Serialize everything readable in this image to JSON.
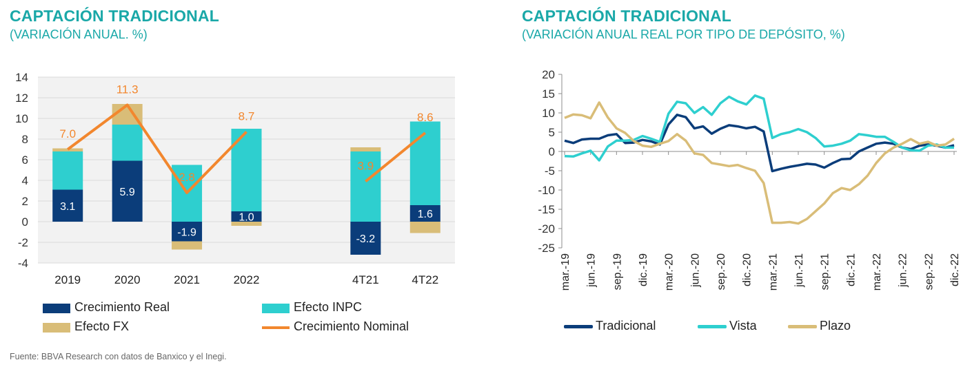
{
  "source": "Fuente: BBVA Research con datos de Banxico y el Inegi.",
  "chart_data": [
    {
      "type": "bar",
      "title": "CAPTACIÓN TRADICIONAL",
      "subtitle": "(VARIACIÓN ANUAL. %)",
      "categories": [
        "2019",
        "2020",
        "2021",
        "2022",
        "",
        "4T21",
        "4T22"
      ],
      "ylim": [
        -4,
        14
      ],
      "yticks": [
        -4,
        -2,
        0,
        2,
        4,
        6,
        8,
        10,
        12,
        14
      ],
      "grid": true,
      "legend_position": "bottom",
      "stacked": true,
      "series": [
        {
          "name": "Crecimiento Real",
          "kind": "bar",
          "color": "#0b3d7a",
          "values": [
            3.1,
            5.9,
            -1.9,
            1.0,
            null,
            -3.2,
            1.6
          ],
          "labels": [
            "3.1",
            "5.9",
            "-1.9",
            "1.0",
            "",
            "-3.2",
            "1.6"
          ]
        },
        {
          "name": "Efecto INPC",
          "kind": "bar",
          "color": "#2ecfcf",
          "values": [
            3.7,
            3.5,
            5.5,
            8.0,
            null,
            6.8,
            8.1
          ]
        },
        {
          "name": "Efecto FX",
          "kind": "bar",
          "color": "#d9bd78",
          "values": [
            0.3,
            2.0,
            -0.8,
            -0.4,
            null,
            0.4,
            -1.1
          ]
        },
        {
          "name": "Crecimiento Nominal",
          "kind": "line",
          "color": "#f2872e",
          "values": [
            7.0,
            11.3,
            2.8,
            8.7,
            null,
            3.9,
            8.6
          ],
          "labels": [
            "7.0",
            "11.3",
            "2.8",
            "8.7",
            "",
            "3.9",
            "8.6"
          ]
        }
      ]
    },
    {
      "type": "line",
      "title": "CAPTACIÓN TRADICIONAL",
      "subtitle": "(VARIACIÓN ANUAL REAL POR TIPO DE DEPÓSITO, %)",
      "x": [
        "mar.-19",
        "abr.-19",
        "may.-19",
        "jun.-19",
        "jul.-19",
        "ago.-19",
        "sep.-19",
        "oct.-19",
        "nov.-19",
        "dic.-19",
        "ene.-20",
        "feb.-20",
        "mar.-20",
        "abr.-20",
        "may.-20",
        "jun.-20",
        "jul.-20",
        "ago.-20",
        "sep.-20",
        "oct.-20",
        "nov.-20",
        "dic.-20",
        "ene.-21",
        "feb.-21",
        "mar.-21",
        "abr.-21",
        "may.-21",
        "jun.-21",
        "jul.-21",
        "ago.-21",
        "sep.-21",
        "oct.-21",
        "nov.-21",
        "dic.-21",
        "ene.-22",
        "feb.-22",
        "mar.-22",
        "abr.-22",
        "may.-22",
        "jun.-22",
        "jul.-22",
        "ago.-22",
        "sep.-22",
        "oct.-22",
        "nov.-22",
        "dic.-22"
      ],
      "xticklabels": [
        "mar.-19",
        "jun.-19",
        "sep.-19",
        "dic.-19",
        "mar.-20",
        "jun.-20",
        "sep.-20",
        "dic.-20",
        "mar.-21",
        "jun.-21",
        "sep.-21",
        "dic.-21",
        "mar.-22",
        "jun.-22",
        "sep.-22",
        "dic.-22"
      ],
      "ylim": [
        -25,
        20
      ],
      "yticks": [
        -25,
        -20,
        -15,
        -10,
        -5,
        0,
        5,
        10,
        15,
        20
      ],
      "grid": false,
      "legend_position": "bottom",
      "series": [
        {
          "name": "Tradicional",
          "color": "#0b3d7a",
          "values": [
            2.8,
            2.2,
            3.1,
            3.3,
            3.3,
            4.2,
            4.5,
            2.2,
            2.3,
            3.0,
            2.6,
            1.8,
            7.0,
            9.5,
            8.9,
            6.0,
            6.5,
            4.6,
            5.9,
            6.8,
            6.5,
            6.0,
            6.4,
            5.2,
            -5.1,
            -4.5,
            -4.0,
            -3.6,
            -3.2,
            -3.4,
            -4.2,
            -3.0,
            -2.0,
            -1.9,
            0.0,
            1.0,
            2.0,
            2.3,
            2.0,
            1.0,
            0.6,
            1.5,
            1.8,
            1.5,
            1.0,
            1.6
          ]
        },
        {
          "name": "Vista",
          "color": "#2ecfcf",
          "values": [
            -1.2,
            -1.3,
            -0.5,
            0.2,
            -2.3,
            1.3,
            2.8,
            2.8,
            3.0,
            4.0,
            3.3,
            2.5,
            9.8,
            12.9,
            12.5,
            10.0,
            11.5,
            9.5,
            12.5,
            14.2,
            13.0,
            12.2,
            14.5,
            13.7,
            3.5,
            4.5,
            5.0,
            5.8,
            5.0,
            3.5,
            1.3,
            1.5,
            2.0,
            2.8,
            4.5,
            4.2,
            3.8,
            3.8,
            2.5,
            1.0,
            0.3,
            0.2,
            1.5,
            1.8,
            1.0,
            1.0
          ]
        },
        {
          "name": "Plazo",
          "color": "#d9bd78",
          "values": [
            8.7,
            9.6,
            9.4,
            8.6,
            12.7,
            8.8,
            6.0,
            4.8,
            2.7,
            1.5,
            1.2,
            2.0,
            2.7,
            4.5,
            2.8,
            -0.5,
            -0.9,
            -3.0,
            -3.4,
            -3.8,
            -3.5,
            -4.3,
            -5.0,
            -8.2,
            -18.5,
            -18.5,
            -18.3,
            -18.7,
            -17.5,
            -15.5,
            -13.5,
            -10.8,
            -9.5,
            -10.0,
            -8.5,
            -6.3,
            -3.0,
            -0.5,
            1.0,
            2.0,
            3.2,
            2.0,
            2.5,
            1.5,
            1.8,
            3.3
          ]
        }
      ]
    }
  ]
}
